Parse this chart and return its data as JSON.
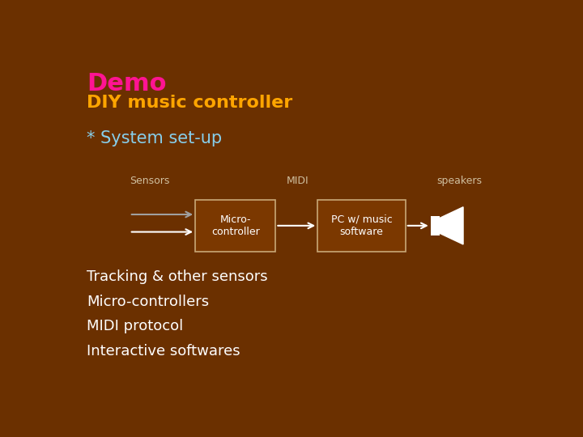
{
  "bg_color": "#6B3000",
  "title_demo": "Demo",
  "title_demo_color": "#FF1493",
  "title_sub": "DIY music controller",
  "title_sub_color": "#FFA500",
  "system_label": "* System set-up",
  "system_label_color": "#87CEEB",
  "sensors_label": "Sensors",
  "midi_label": "MIDI",
  "speakers_label": "speakers",
  "box1_label": "Micro-\ncontroller",
  "box2_label": "PC w/ music\nsoftware",
  "box_color": "#7B3800",
  "box_edge_color": "#C8A878",
  "arrow_color": "#FFFFFF",
  "arrow_gray_color": "#A0A0A0",
  "text_color": "#FFFFFF",
  "diagram_label_color": "#D0C0A0",
  "bullet_items": [
    "Tracking & other sensors",
    "Micro-controllers",
    "MIDI protocol",
    "Interactive softwares"
  ]
}
